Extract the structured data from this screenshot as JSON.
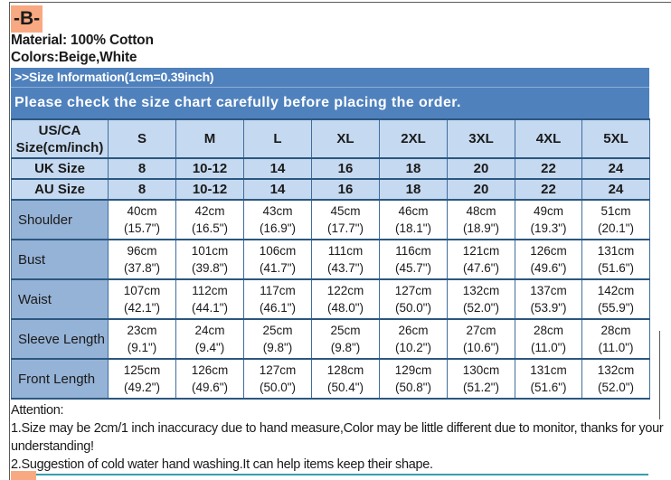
{
  "colors": {
    "highlight": "#F8A982",
    "banner_blue": "#4F81BD",
    "header_light_blue": "#C5D9F0",
    "row_label_blue": "#95B3D7",
    "grid": "#2B577F",
    "grid_vert": "#3F6D9E",
    "teal_rule": "#35A0AC",
    "frame_gray": "#5A5A5A",
    "text": "#1A1A1A"
  },
  "section": {
    "label": "-B-"
  },
  "product": {
    "material": "Material: 100% Cotton",
    "colors": "Colors:Beige,White"
  },
  "banners": {
    "size_info": ">>Size Information(1cm=0.39inch)",
    "notice": "Please check the size chart carefully before placing the order."
  },
  "size_table": {
    "corner_header_lines": [
      "US/CA",
      "Size(cm/inch)"
    ],
    "sizes": [
      "S",
      "M",
      "L",
      "XL",
      "2XL",
      "3XL",
      "4XL",
      "5XL"
    ],
    "intl_rows": [
      {
        "label": "UK Size",
        "values": [
          "8",
          "10-12",
          "14",
          "16",
          "18",
          "20",
          "22",
          "24"
        ]
      },
      {
        "label": "AU Size",
        "values": [
          "8",
          "10-12",
          "14",
          "16",
          "18",
          "20",
          "22",
          "24"
        ]
      }
    ],
    "measurements": [
      {
        "label": "Shoulder",
        "cm": [
          "40cm",
          "42cm",
          "43cm",
          "45cm",
          "46cm",
          "48cm",
          "49cm",
          "51cm"
        ],
        "inch": [
          "(15.7\")",
          "(16.5\")",
          "(16.9\")",
          "(17.7\")",
          "(18.1\")",
          "(18.9\")",
          "(19.3\")",
          "(20.1\")"
        ]
      },
      {
        "label": "Bust",
        "cm": [
          "96cm",
          "101cm",
          "106cm",
          "111cm",
          "116cm",
          "121cm",
          "126cm",
          "131cm"
        ],
        "inch": [
          "(37.8\")",
          "(39.8\")",
          "(41.7\")",
          "(43.7\")",
          "(45.7\")",
          "(47.6\")",
          "(49.6\")",
          "(51.6\")"
        ]
      },
      {
        "label": "Waist",
        "cm": [
          "107cm",
          "112cm",
          "117cm",
          "122cm",
          "127cm",
          "132cm",
          "137cm",
          "142cm"
        ],
        "inch": [
          "(42.1\")",
          "(44.1\")",
          "(46.1\")",
          "(48.0\")",
          "(50.0\")",
          "(52.0\")",
          "(53.9\")",
          "(55.9\")"
        ]
      },
      {
        "label": "Sleeve Length",
        "cm": [
          "23cm",
          "24cm",
          "25cm",
          "25cm",
          "26cm",
          "27cm",
          "28cm",
          "28cm"
        ],
        "inch": [
          "(9.1\")",
          "(9.4\")",
          "(9.8\")",
          "(9.8\")",
          "(10.2\")",
          "(10.6\")",
          "(11.0\")",
          "(11.0\")"
        ]
      },
      {
        "label": "Front Length",
        "cm": [
          "125cm",
          "126cm",
          "127cm",
          "128cm",
          "129cm",
          "130cm",
          "131cm",
          "132cm"
        ],
        "inch": [
          "(49.2\")",
          "(49.6\")",
          "(50.0\")",
          "(50.4\")",
          "(50.8\")",
          "(51.2\")",
          "(51.6\")",
          "(52.0\")"
        ]
      }
    ]
  },
  "attention": {
    "title": "Attention:",
    "lines": [
      "1.Size may be 2cm/1 inch inaccuracy due to hand measure,Color may be little different due to monitor, thanks for your understanding!",
      "2.Suggestion of cold water hand washing.It can help items keep their shape."
    ]
  }
}
